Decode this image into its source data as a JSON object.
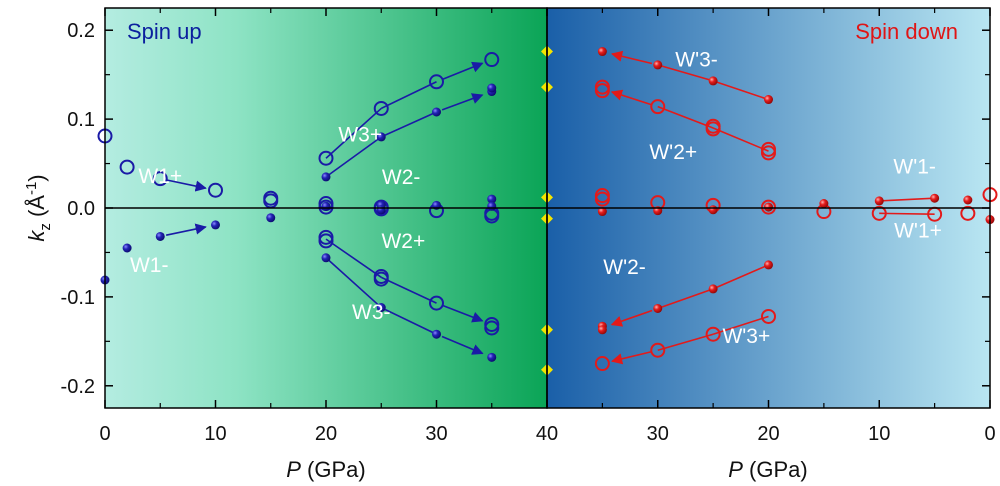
{
  "chart_data": {
    "type": "scatter",
    "ylabel_main": "k",
    "ylabel_sub": "z",
    "ylabel_unit_pre": " (Å",
    "ylabel_unit_sup": "-1",
    "ylabel_unit_post": ")",
    "ylim": [
      -0.225,
      0.225
    ],
    "yticks": [
      "0.2",
      "0.1",
      "0.0",
      "-0.1",
      "-0.2"
    ],
    "ytick_values": [
      0.2,
      0.1,
      0.0,
      -0.1,
      -0.2
    ],
    "left_panel": {
      "title": "Spin up",
      "title_color": "#0b1f9e",
      "xlabel_italic": "P",
      "xlabel_rest": " (GPa)",
      "xlim": [
        0,
        40
      ],
      "xticks": [
        "0",
        "10",
        "20",
        "30",
        "40"
      ],
      "xtick_values": [
        0,
        10,
        20,
        30,
        40
      ],
      "color": "#1a1aa6",
      "background_from": "#b4ece1",
      "background_to": "#0aa456",
      "open_markers": [
        {
          "x": 0,
          "y": 0.081
        },
        {
          "x": 2,
          "y": 0.046
        },
        {
          "x": 5,
          "y": 0.033
        },
        {
          "x": 10,
          "y": 0.02
        },
        {
          "x": 15,
          "y": 0.011
        },
        {
          "x": 15,
          "y": 0.008
        },
        {
          "x": 20,
          "y": 0.056
        },
        {
          "x": 25,
          "y": 0.112
        },
        {
          "x": 30,
          "y": 0.142
        },
        {
          "x": 35,
          "y": 0.167
        },
        {
          "x": 20,
          "y": -0.033
        },
        {
          "x": 20,
          "y": -0.037
        },
        {
          "x": 25,
          "y": -0.077
        },
        {
          "x": 25,
          "y": -0.08
        },
        {
          "x": 30,
          "y": -0.107
        },
        {
          "x": 35,
          "y": -0.131
        },
        {
          "x": 35,
          "y": -0.135
        },
        {
          "x": 20,
          "y": 0.005
        },
        {
          "x": 20,
          "y": 0.001
        },
        {
          "x": 25,
          "y": 0.001
        },
        {
          "x": 25,
          "y": -0.001
        },
        {
          "x": 30,
          "y": -0.003
        },
        {
          "x": 35,
          "y": -0.006
        },
        {
          "x": 35,
          "y": -0.009
        }
      ],
      "filled_markers": [
        {
          "x": 0,
          "y": -0.081
        },
        {
          "x": 2,
          "y": -0.045
        },
        {
          "x": 5,
          "y": -0.032
        },
        {
          "x": 10,
          "y": -0.019
        },
        {
          "x": 15,
          "y": -0.011
        },
        {
          "x": 20,
          "y": 0.035
        },
        {
          "x": 25,
          "y": 0.08
        },
        {
          "x": 30,
          "y": 0.108
        },
        {
          "x": 35,
          "y": 0.131
        },
        {
          "x": 35,
          "y": 0.135
        },
        {
          "x": 20,
          "y": -0.056
        },
        {
          "x": 25,
          "y": -0.112
        },
        {
          "x": 30,
          "y": -0.142
        },
        {
          "x": 35,
          "y": -0.168
        },
        {
          "x": 20,
          "y": 0.002
        },
        {
          "x": 25,
          "y": 0.003
        },
        {
          "x": 25,
          "y": -0.002
        },
        {
          "x": 30,
          "y": 0.003
        },
        {
          "x": 35,
          "y": 0.01
        },
        {
          "x": 35,
          "y": 0.002
        }
      ],
      "arrows": [
        {
          "x1": 5,
          "y1": 0.033,
          "x2": 10,
          "y2": 0.02
        },
        {
          "x1": 5,
          "y1": -0.032,
          "x2": 10,
          "y2": -0.019
        },
        {
          "x1": 30,
          "y1": 0.142,
          "x2": 35,
          "y2": 0.167
        },
        {
          "x1": 30,
          "y1": 0.108,
          "x2": 35,
          "y2": 0.131
        },
        {
          "x1": 30,
          "y1": -0.107,
          "x2": 35,
          "y2": -0.131
        },
        {
          "x1": 30,
          "y1": -0.142,
          "x2": 35,
          "y2": -0.168
        }
      ],
      "segments": [
        {
          "x1": 20,
          "y1": 0.056,
          "x2": 25,
          "y2": 0.112
        },
        {
          "x1": 25,
          "y1": 0.112,
          "x2": 30,
          "y2": 0.142
        },
        {
          "x1": 20,
          "y1": 0.035,
          "x2": 25,
          "y2": 0.08
        },
        {
          "x1": 25,
          "y1": 0.08,
          "x2": 30,
          "y2": 0.108
        },
        {
          "x1": 20,
          "y1": -0.035,
          "x2": 25,
          "y2": -0.078
        },
        {
          "x1": 25,
          "y1": -0.078,
          "x2": 30,
          "y2": -0.107
        },
        {
          "x1": 20,
          "y1": -0.056,
          "x2": 25,
          "y2": -0.112
        },
        {
          "x1": 25,
          "y1": -0.112,
          "x2": 30,
          "y2": -0.142
        }
      ],
      "labels": [
        {
          "text": "W1+",
          "x": 5.0,
          "y": 0.028
        },
        {
          "text": "W1-",
          "x": 4.0,
          "y": -0.072
        },
        {
          "text": "W3+",
          "x": 23.1,
          "y": 0.075
        },
        {
          "text": "W2-",
          "x": 26.8,
          "y": 0.027
        },
        {
          "text": "W2+",
          "x": 27.0,
          "y": -0.045
        },
        {
          "text": "W3-",
          "x": 24.1,
          "y": -0.125
        }
      ]
    },
    "right_panel": {
      "title": "Spin down",
      "title_color": "#e01515",
      "xlabel_italic": "P",
      "xlabel_rest": " (GPa)",
      "xlim": [
        40,
        0
      ],
      "xticks": [
        "40",
        "30",
        "20",
        "10",
        "0"
      ],
      "xtick_values": [
        40,
        30,
        20,
        10,
        0
      ],
      "color": "#e31a1a",
      "background_from": "#1a5fa8",
      "background_to": "#b9e6f2",
      "open_markers": [
        {
          "x": 35,
          "y": 0.136
        },
        {
          "x": 35,
          "y": 0.132
        },
        {
          "x": 30,
          "y": 0.114
        },
        {
          "x": 25,
          "y": 0.092
        },
        {
          "x": 25,
          "y": 0.089
        },
        {
          "x": 20,
          "y": 0.066
        },
        {
          "x": 20,
          "y": 0.062
        },
        {
          "x": 35,
          "y": 0.014
        },
        {
          "x": 35,
          "y": 0.01
        },
        {
          "x": 30,
          "y": 0.006
        },
        {
          "x": 25,
          "y": 0.003
        },
        {
          "x": 20,
          "y": 0.001
        },
        {
          "x": 15,
          "y": -0.004
        },
        {
          "x": 10,
          "y": -0.006
        },
        {
          "x": 5,
          "y": -0.007
        },
        {
          "x": 2,
          "y": -0.006
        },
        {
          "x": 0,
          "y": 0.015
        },
        {
          "x": 35,
          "y": -0.175
        },
        {
          "x": 30,
          "y": -0.16
        },
        {
          "x": 25,
          "y": -0.142
        },
        {
          "x": 20,
          "y": -0.122
        }
      ],
      "filled_markers": [
        {
          "x": 35,
          "y": 0.176
        },
        {
          "x": 30,
          "y": 0.161
        },
        {
          "x": 25,
          "y": 0.143
        },
        {
          "x": 20,
          "y": 0.122
        },
        {
          "x": 35,
          "y": -0.004
        },
        {
          "x": 30,
          "y": -0.003
        },
        {
          "x": 25,
          "y": -0.002
        },
        {
          "x": 20,
          "y": 0.001
        },
        {
          "x": 15,
          "y": 0.005
        },
        {
          "x": 10,
          "y": 0.008
        },
        {
          "x": 5,
          "y": 0.011
        },
        {
          "x": 2,
          "y": 0.009
        },
        {
          "x": 0,
          "y": -0.013
        },
        {
          "x": 35,
          "y": -0.133
        },
        {
          "x": 35,
          "y": -0.137
        },
        {
          "x": 30,
          "y": -0.113
        },
        {
          "x": 25,
          "y": -0.091
        },
        {
          "x": 20,
          "y": -0.064
        }
      ],
      "arrows": [
        {
          "x1": 30,
          "y1": 0.161,
          "x2": 35,
          "y2": 0.176
        },
        {
          "x1": 30,
          "y1": 0.114,
          "x2": 35,
          "y2": 0.134
        },
        {
          "x1": 30,
          "y1": -0.113,
          "x2": 35,
          "y2": -0.135
        },
        {
          "x1": 30,
          "y1": -0.16,
          "x2": 35,
          "y2": -0.175
        }
      ],
      "segments": [
        {
          "x1": 25,
          "y1": 0.143,
          "x2": 30,
          "y2": 0.161
        },
        {
          "x1": 20,
          "y1": 0.122,
          "x2": 25,
          "y2": 0.143
        },
        {
          "x1": 25,
          "y1": 0.09,
          "x2": 30,
          "y2": 0.114
        },
        {
          "x1": 20,
          "y1": 0.064,
          "x2": 25,
          "y2": 0.09
        },
        {
          "x1": 25,
          "y1": -0.091,
          "x2": 30,
          "y2": -0.113
        },
        {
          "x1": 20,
          "y1": -0.064,
          "x2": 25,
          "y2": -0.091
        },
        {
          "x1": 25,
          "y1": -0.142,
          "x2": 30,
          "y2": -0.16
        },
        {
          "x1": 20,
          "y1": -0.122,
          "x2": 25,
          "y2": -0.142
        },
        {
          "x1": 10,
          "y1": 0.008,
          "x2": 5,
          "y2": 0.011
        },
        {
          "x1": 10,
          "y1": -0.006,
          "x2": 5,
          "y2": -0.007
        }
      ],
      "labels": [
        {
          "text": "W'3-",
          "x": 26.5,
          "y": 0.159
        },
        {
          "text": "W'2+",
          "x": 28.6,
          "y": 0.055
        },
        {
          "text": "W'1-",
          "x": 6.8,
          "y": 0.039
        },
        {
          "text": "W'1+",
          "x": 6.5,
          "y": -0.033
        },
        {
          "text": "W'2-",
          "x": 33.0,
          "y": -0.074
        },
        {
          "text": "W'3+",
          "x": 22.0,
          "y": -0.152
        }
      ]
    },
    "boundary_markers": {
      "color": "#f5e400",
      "shape": "diamond",
      "x": 40,
      "y": [
        0.176,
        0.136,
        0.012,
        -0.012,
        -0.137,
        -0.182
      ]
    },
    "zero_line": 0.0
  }
}
